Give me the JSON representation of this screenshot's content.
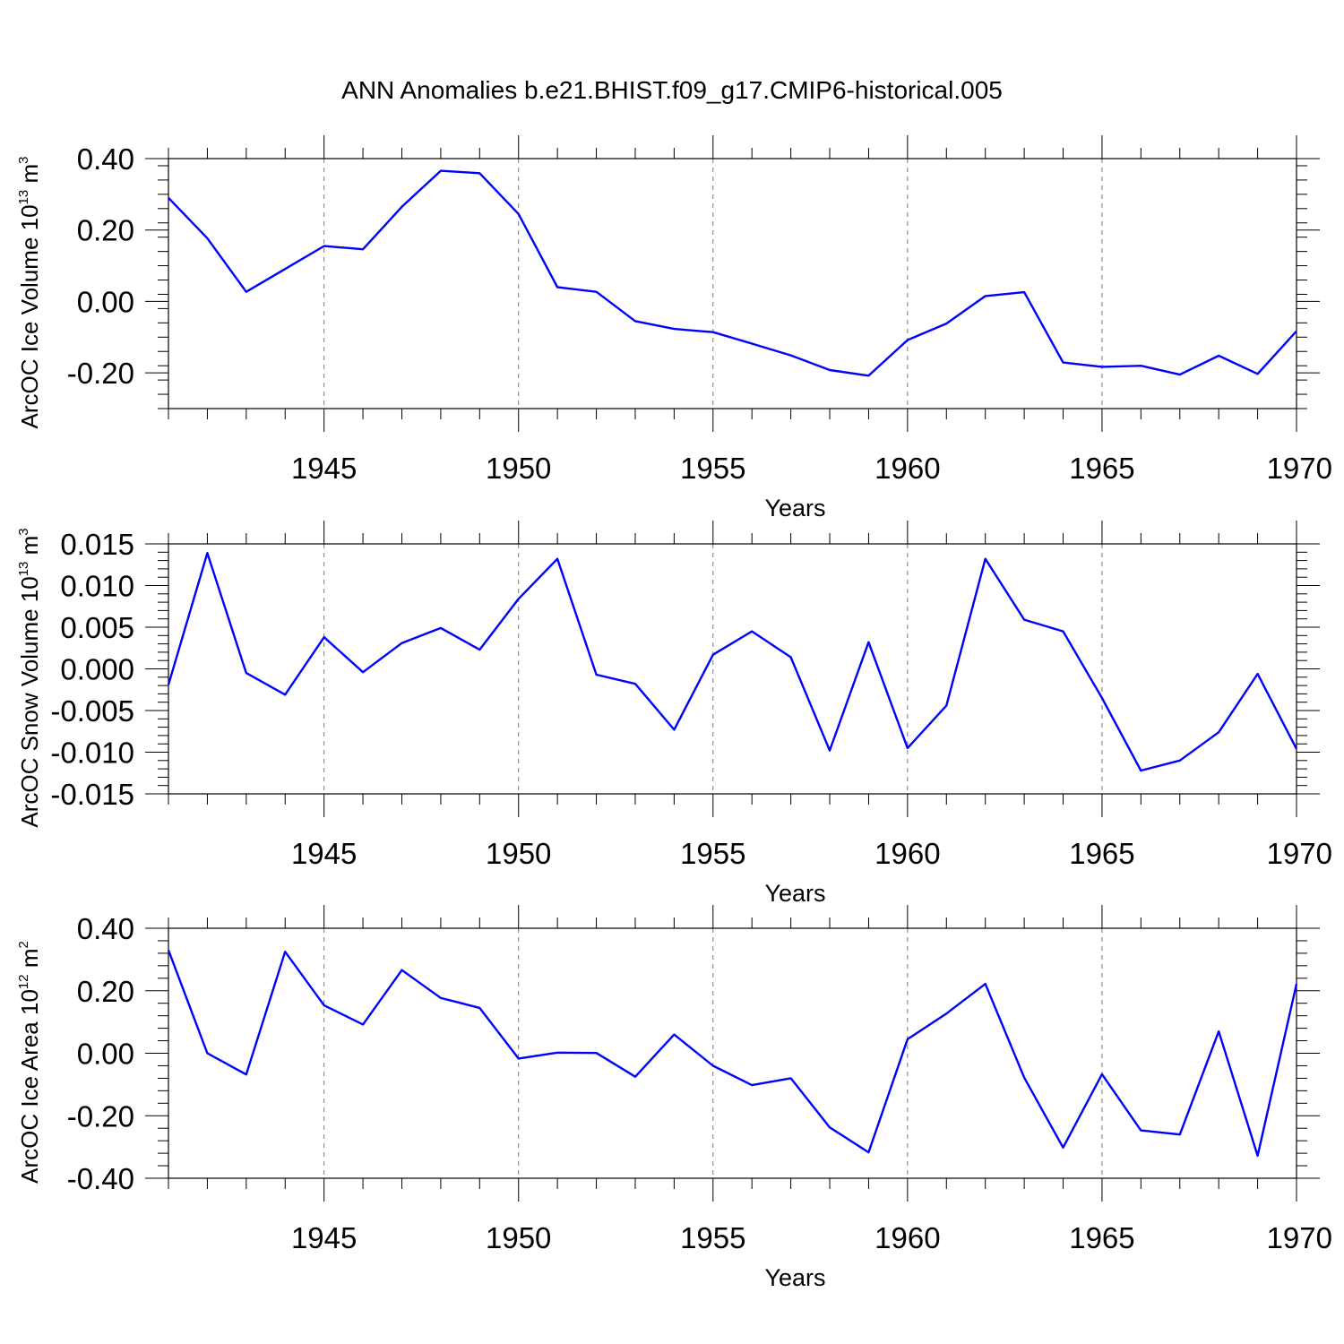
{
  "figure": {
    "title": "ANN Anomalies b.e21.BHIST.f09_g17.CMIP6-historical.005"
  },
  "chart_data": [
    {
      "type": "line",
      "ylabel": "ArcOC Ice Volume 10",
      "ylabel_exp": "13",
      "ylabel_unit": " m",
      "ylabel_unit_exp": "3",
      "xlabel": "Years",
      "xlim": [
        1941,
        1970
      ],
      "ylim": [
        -0.3,
        0.4
      ],
      "yticks": [
        -0.2,
        0.0,
        0.2,
        0.4
      ],
      "ytick_labels": [
        "-0.20",
        "0.00",
        "0.20",
        "0.40"
      ],
      "xticks": [
        1945,
        1950,
        1955,
        1960,
        1965,
        1970
      ],
      "xtick_labels": [
        "1945",
        "1950",
        "1955",
        "1960",
        "1965",
        "1970"
      ],
      "grid_x": true,
      "color": "#0000ff",
      "x": [
        1941,
        1942,
        1943,
        1944,
        1945,
        1946,
        1947,
        1948,
        1949,
        1950,
        1951,
        1952,
        1953,
        1954,
        1955,
        1956,
        1957,
        1958,
        1959,
        1960,
        1961,
        1962,
        1963,
        1964,
        1965,
        1966,
        1967,
        1968,
        1969,
        1970
      ],
      "values": [
        0.29,
        0.177,
        0.027,
        0.091,
        0.155,
        0.146,
        0.265,
        0.366,
        0.359,
        0.245,
        0.04,
        0.027,
        -0.055,
        -0.077,
        -0.086,
        -0.118,
        -0.151,
        -0.192,
        -0.208,
        -0.108,
        -0.062,
        0.015,
        0.026,
        -0.171,
        -0.183,
        -0.18,
        -0.205,
        -0.152,
        -0.203,
        -0.083
      ]
    },
    {
      "type": "line",
      "ylabel": "ArcOC Snow Volume 10",
      "ylabel_exp": "13",
      "ylabel_unit": " m",
      "ylabel_unit_exp": "3",
      "xlabel": "Years",
      "xlim": [
        1941,
        1970
      ],
      "ylim": [
        -0.015,
        0.015
      ],
      "yticks": [
        -0.015,
        -0.01,
        -0.005,
        0.0,
        0.005,
        0.01,
        0.015
      ],
      "ytick_labels": [
        "-0.015",
        "-0.010",
        "-0.005",
        "0.000",
        "0.005",
        "0.010",
        "0.015"
      ],
      "xticks": [
        1945,
        1950,
        1955,
        1960,
        1965,
        1970
      ],
      "xtick_labels": [
        "1945",
        "1950",
        "1955",
        "1960",
        "1965",
        "1970"
      ],
      "grid_x": true,
      "color": "#0000ff",
      "x": [
        1941,
        1942,
        1943,
        1944,
        1945,
        1946,
        1947,
        1948,
        1949,
        1950,
        1951,
        1952,
        1953,
        1954,
        1955,
        1956,
        1957,
        1958,
        1959,
        1960,
        1961,
        1962,
        1963,
        1964,
        1965,
        1966,
        1967,
        1968,
        1969,
        1970
      ],
      "values": [
        -0.0019,
        0.0139,
        -0.0005,
        -0.0031,
        0.0038,
        -0.0004,
        0.0031,
        0.0049,
        0.0023,
        0.0084,
        0.0132,
        -0.0007,
        -0.0018,
        -0.0073,
        0.0017,
        0.0045,
        0.0014,
        -0.0098,
        0.0032,
        -0.0095,
        -0.0044,
        0.0132,
        0.0059,
        0.0045,
        -0.0035,
        -0.0122,
        -0.011,
        -0.0076,
        -0.0006,
        -0.0096
      ]
    },
    {
      "type": "line",
      "ylabel": "ArcOC Ice Area 10",
      "ylabel_exp": "12",
      "ylabel_unit": " m",
      "ylabel_unit_exp": "2",
      "xlabel": "Years",
      "xlim": [
        1941,
        1970
      ],
      "ylim": [
        -0.4,
        0.4
      ],
      "yticks": [
        -0.4,
        -0.2,
        0.0,
        0.2,
        0.4
      ],
      "ytick_labels": [
        "-0.40",
        "-0.20",
        "0.00",
        "0.20",
        "0.40"
      ],
      "xticks": [
        1945,
        1950,
        1955,
        1960,
        1965,
        1970
      ],
      "xtick_labels": [
        "1945",
        "1950",
        "1955",
        "1960",
        "1965",
        "1970"
      ],
      "grid_x": true,
      "color": "#0000ff",
      "x": [
        1941,
        1942,
        1943,
        1944,
        1945,
        1946,
        1947,
        1948,
        1949,
        1950,
        1951,
        1952,
        1953,
        1954,
        1955,
        1956,
        1957,
        1958,
        1959,
        1960,
        1961,
        1962,
        1963,
        1964,
        1965,
        1966,
        1967,
        1968,
        1969,
        1970
      ],
      "values": [
        0.33,
        0.0,
        -0.068,
        0.325,
        0.153,
        0.092,
        0.266,
        0.177,
        0.145,
        -0.017,
        0.002,
        0.001,
        -0.075,
        0.06,
        -0.04,
        -0.102,
        -0.08,
        -0.237,
        -0.317,
        0.045,
        0.127,
        0.222,
        -0.078,
        -0.302,
        -0.067,
        -0.247,
        -0.26,
        0.07,
        -0.328,
        0.222
      ]
    }
  ]
}
